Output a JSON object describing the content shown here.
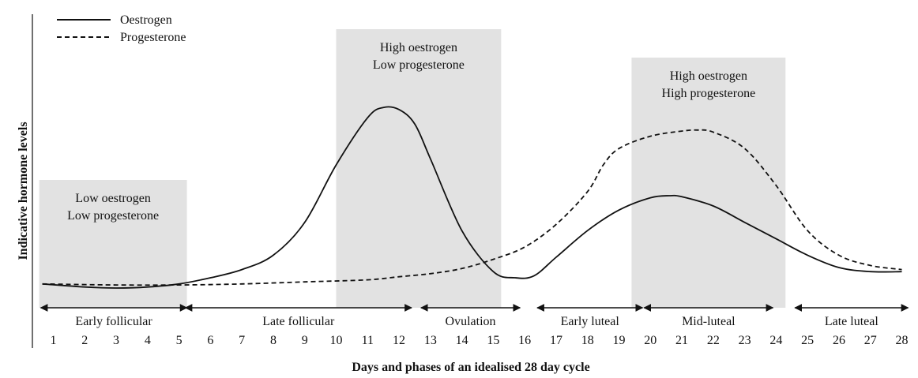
{
  "chart_data": {
    "type": "line",
    "xlabel": "Days and phases of an idealised 28 day cycle",
    "ylabel": "Indicative hormone levels",
    "x": [
      1,
      2,
      3,
      4,
      5,
      6,
      7,
      8,
      9,
      10,
      11,
      12,
      13,
      14,
      15,
      16,
      17,
      18,
      19,
      20,
      21,
      22,
      23,
      24,
      25,
      26,
      27,
      28
    ],
    "ylim": [
      0,
      100
    ],
    "legend": {
      "position": "top-left"
    },
    "series": [
      {
        "name": "Oestrogen",
        "style": "solid",
        "points": [
          [
            0.65,
            2
          ],
          [
            2,
            0.5
          ],
          [
            3,
            0
          ],
          [
            4,
            0.5
          ],
          [
            5,
            2
          ],
          [
            6,
            5
          ],
          [
            7,
            9
          ],
          [
            8,
            16
          ],
          [
            9,
            32
          ],
          [
            10,
            60
          ],
          [
            11,
            83
          ],
          [
            11.5,
            88
          ],
          [
            12,
            87
          ],
          [
            12.5,
            80
          ],
          [
            13,
            63
          ],
          [
            14,
            28
          ],
          [
            15,
            8
          ],
          [
            15.7,
            5
          ],
          [
            16.3,
            6
          ],
          [
            17,
            15
          ],
          [
            18,
            28
          ],
          [
            19,
            38
          ],
          [
            20,
            44
          ],
          [
            20.6,
            45
          ],
          [
            21,
            44.5
          ],
          [
            22,
            40
          ],
          [
            23,
            32
          ],
          [
            24,
            24
          ],
          [
            25,
            16
          ],
          [
            26,
            10
          ],
          [
            27,
            8
          ],
          [
            28,
            8
          ]
        ]
      },
      {
        "name": "Progesterone",
        "style": "dashed",
        "points": [
          [
            0.65,
            2
          ],
          [
            3,
            1.5
          ],
          [
            5,
            1.5
          ],
          [
            7,
            2
          ],
          [
            9,
            3
          ],
          [
            11,
            4
          ],
          [
            12,
            5.5
          ],
          [
            13,
            7
          ],
          [
            14,
            9.5
          ],
          [
            15,
            14
          ],
          [
            16,
            20
          ],
          [
            17,
            31
          ],
          [
            18,
            47
          ],
          [
            18.5,
            60
          ],
          [
            19,
            68
          ],
          [
            20,
            74
          ],
          [
            21,
            76.5
          ],
          [
            21.5,
            77
          ],
          [
            22,
            76
          ],
          [
            23,
            68
          ],
          [
            24,
            50
          ],
          [
            25,
            28
          ],
          [
            26,
            16
          ],
          [
            27,
            11
          ],
          [
            28,
            9
          ]
        ]
      }
    ],
    "regions": [
      {
        "label_lines": [
          "Low oestrogen",
          "Low progesterone"
        ],
        "from_day": 0.55,
        "to_day": 5.25
      },
      {
        "label_lines": [
          "High oestrogen",
          "Low progesterone"
        ],
        "from_day": 10,
        "to_day": 15.25
      },
      {
        "label_lines": [
          "High oestrogen",
          "High progesterone"
        ],
        "from_day": 19.4,
        "to_day": 24.3
      }
    ],
    "phases": [
      {
        "label": "Early follicular",
        "start_day": 0.6,
        "end_day": 5.25
      },
      {
        "label": "Late follicular",
        "start_day": 5.2,
        "end_day": 12.4
      },
      {
        "label": "Ovulation",
        "start_day": 12.7,
        "end_day": 15.85
      },
      {
        "label": "Early luteal",
        "start_day": 16.4,
        "end_day": 19.75
      },
      {
        "label": "Mid-luteal",
        "start_day": 19.8,
        "end_day": 23.9
      },
      {
        "label": "Late luteal",
        "start_day": 24.6,
        "end_day": 28.2
      }
    ]
  }
}
